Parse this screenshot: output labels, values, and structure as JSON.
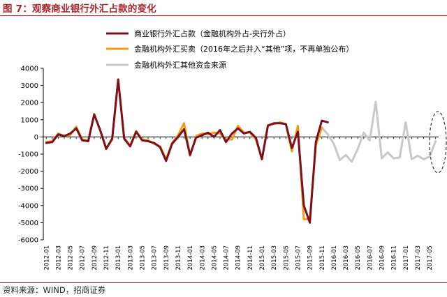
{
  "figure_title": "图 7：观察商业银行外汇占款的变化",
  "source_note": "资料来源：WIND，招商证券",
  "chart_data": {
    "type": "line",
    "ylim": [
      -6000,
      4000
    ],
    "yticks": [
      4000,
      3000,
      2000,
      1000,
      0,
      -1000,
      -2000,
      -3000,
      -4000,
      -5000,
      -6000
    ],
    "grid": false,
    "legend_position": "top-left",
    "x": [
      "2012-01",
      "2012-02",
      "2012-03",
      "2012-04",
      "2012-05",
      "2012-06",
      "2012-07",
      "2012-08",
      "2012-09",
      "2012-10",
      "2012-11",
      "2012-12",
      "2013-01",
      "2013-02",
      "2013-03",
      "2013-04",
      "2013-05",
      "2013-06",
      "2013-07",
      "2013-08",
      "2013-09",
      "2013-10",
      "2013-11",
      "2013-12",
      "2014-01",
      "2014-02",
      "2014-03",
      "2014-04",
      "2014-05",
      "2014-06",
      "2014-07",
      "2014-08",
      "2014-09",
      "2014-10",
      "2014-11",
      "2014-12",
      "2015-01",
      "2015-02",
      "2015-03",
      "2015-04",
      "2015-05",
      "2015-06",
      "2015-07",
      "2015-08",
      "2015-09",
      "2015-10",
      "2015-11",
      "2015-12",
      "2016-01",
      "2016-02",
      "2016-03",
      "2016-04",
      "2016-05",
      "2016-06",
      "2016-07",
      "2016-08",
      "2016-09",
      "2016-10",
      "2016-11",
      "2016-12",
      "2017-01",
      "2017-02",
      "2017-03",
      "2017-04",
      "2017-05",
      "2017-06"
    ],
    "xtick_labels": [
      "2012-01",
      "2012-03",
      "2012-05",
      "2012-07",
      "2012-09",
      "2012-11",
      "2013-01",
      "2013-03",
      "2013-05",
      "2013-07",
      "2013-09",
      "2013-11",
      "2014-01",
      "2014-03",
      "2014-05",
      "2014-07",
      "2014-09",
      "2014-11",
      "2015-01",
      "2015-03",
      "2015-05",
      "2015-07",
      "2015-09",
      "2015-11",
      "2016-01",
      "2016-03",
      "2016-05",
      "2016-07",
      "2016-09",
      "2016-11",
      "2017-01",
      "2017-03",
      "2017-05"
    ],
    "series": [
      {
        "name": "商业银行外汇占款（金融机构外占-央行外占）",
        "color": "#7b1020",
        "values": [
          -350,
          -300,
          150,
          50,
          200,
          500,
          -200,
          -250,
          1300,
          400,
          -700,
          -100,
          3350,
          -100,
          -550,
          300,
          -200,
          -250,
          -350,
          -600,
          -1400,
          -400,
          0,
          450,
          -1050,
          -50,
          100,
          250,
          0,
          400,
          -300,
          200,
          500,
          200,
          300,
          -50,
          -1300,
          650,
          800,
          800,
          750,
          -650,
          300,
          -4000,
          -5000,
          -300,
          950,
          850,
          null,
          null,
          null,
          null,
          null,
          null,
          null,
          null,
          null,
          null,
          null,
          null,
          null,
          null,
          null,
          null,
          null,
          null
        ]
      },
      {
        "name": "金融机构外汇买卖（2016年之后并入“其他”项，不再单独公布）",
        "color": "#f79a18",
        "values": [
          -300,
          -250,
          200,
          50,
          100,
          600,
          -150,
          -200,
          1350,
          350,
          -650,
          -150,
          3350,
          -50,
          -500,
          350,
          -150,
          -200,
          -400,
          -550,
          -1300,
          -350,
          100,
          800,
          -1100,
          50,
          200,
          150,
          250,
          200,
          -150,
          -150,
          650,
          250,
          250,
          -150,
          -1300,
          700,
          750,
          850,
          750,
          -850,
          650,
          -4800,
          -4800,
          -500,
          550,
          null,
          null,
          null,
          null,
          null,
          null,
          null,
          null,
          null,
          null,
          null,
          null,
          null,
          null,
          null,
          null,
          null,
          null,
          null
        ]
      },
      {
        "name": "金融机构外汇其他资金来源",
        "color": "#c8c8c8",
        "values": [
          null,
          null,
          null,
          null,
          null,
          null,
          null,
          null,
          null,
          null,
          null,
          null,
          null,
          null,
          null,
          null,
          null,
          null,
          null,
          null,
          null,
          null,
          null,
          null,
          null,
          null,
          null,
          null,
          null,
          null,
          null,
          null,
          null,
          null,
          null,
          null,
          null,
          null,
          null,
          null,
          null,
          null,
          null,
          null,
          null,
          null,
          550,
          150,
          -400,
          -1350,
          -1050,
          -1450,
          -700,
          250,
          -200,
          2050,
          -1250,
          -900,
          -1250,
          -1200,
          850,
          -1300,
          -1100,
          -1300,
          -1150,
          -250
        ]
      }
    ]
  }
}
